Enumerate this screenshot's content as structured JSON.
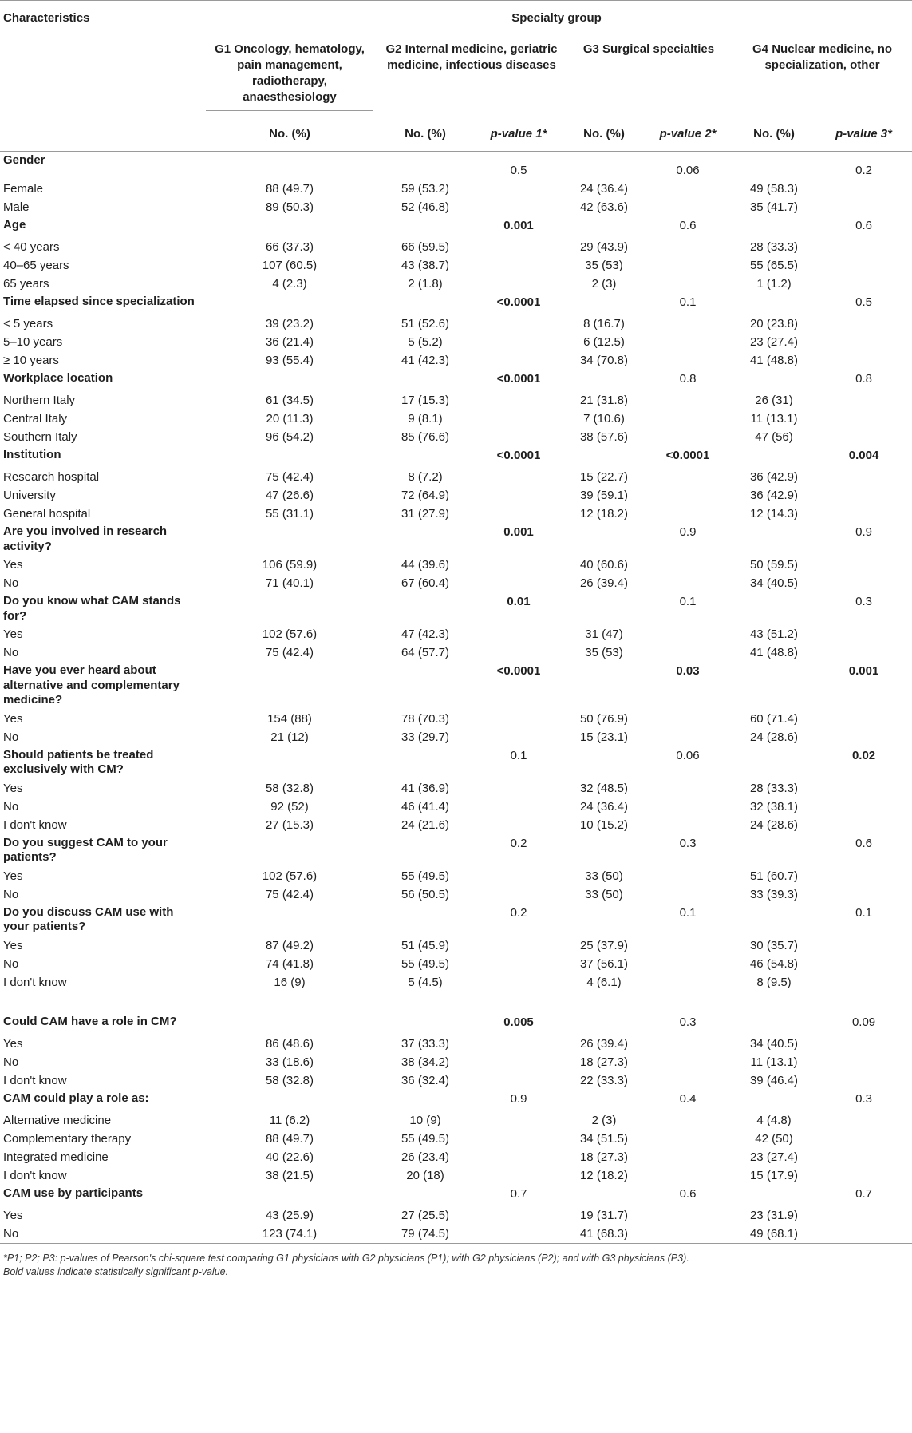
{
  "header": {
    "characteristics": "Characteristics",
    "specialty_group": "Specialty group",
    "groups": [
      "G1 Oncology, hematology, pain management, radiotherapy, anaesthesiology",
      "G2 Internal medicine, geriatric medicine, infectious diseases",
      "G3 Surgical specialties",
      "G4 Nuclear medicine, no specialization, other"
    ],
    "no_pct": "No. (%)",
    "pvalue1": "p-value 1*",
    "pvalue2": "p-value 2*",
    "pvalue3": "p-value 3*"
  },
  "sections": [
    {
      "title": "Gender",
      "p1": "0.5",
      "p2": "0.06",
      "p3": "0.2",
      "b1": false,
      "b2": false,
      "b3": false,
      "rows": [
        [
          "Female",
          "88 (49.7)",
          "59 (53.2)",
          "24 (36.4)",
          "49 (58.3)"
        ],
        [
          "Male",
          "89 (50.3)",
          "52 (46.8)",
          "42 (63.6)",
          "35 (41.7)"
        ]
      ]
    },
    {
      "title": "Age",
      "p1": "0.001",
      "p2": "0.6",
      "p3": "0.6",
      "b1": true,
      "b2": false,
      "b3": false,
      "rows": [
        [
          "< 40 years",
          "66 (37.3)",
          "66 (59.5)",
          "29 (43.9)",
          "28 (33.3)"
        ],
        [
          "40–65 years",
          "107 (60.5)",
          "43 (38.7)",
          "35 (53)",
          "55 (65.5)"
        ],
        [
          "65 years",
          "4 (2.3)",
          "2 (1.8)",
          "2 (3)",
          "1 (1.2)"
        ]
      ]
    },
    {
      "title": "Time elapsed since specialization",
      "p1": "<0.0001",
      "p2": "0.1",
      "p3": "0.5",
      "b1": true,
      "b2": false,
      "b3": false,
      "rows": [
        [
          "< 5 years",
          "39 (23.2)",
          "51 (52.6)",
          "8 (16.7)",
          "20 (23.8)"
        ],
        [
          "5–10 years",
          "36 (21.4)",
          "5 (5.2)",
          "6 (12.5)",
          "23 (27.4)"
        ],
        [
          "≥ 10 years",
          "93 (55.4)",
          "41 (42.3)",
          "34 (70.8)",
          "41 (48.8)"
        ]
      ]
    },
    {
      "title": "Workplace location",
      "p1": "<0.0001",
      "p2": "0.8",
      "p3": "0.8",
      "b1": true,
      "b2": false,
      "b3": false,
      "rows": [
        [
          "Northern Italy",
          "61 (34.5)",
          "17 (15.3)",
          "21 (31.8)",
          "26 (31)"
        ],
        [
          "Central Italy",
          "20 (11.3)",
          "9 (8.1)",
          "7 (10.6)",
          "11 (13.1)"
        ],
        [
          "Southern Italy",
          "96 (54.2)",
          "85 (76.6)",
          "38 (57.6)",
          "47 (56)"
        ]
      ]
    },
    {
      "title": "Institution",
      "p1": "<0.0001",
      "p2": "<0.0001",
      "p3": "0.004",
      "b1": true,
      "b2": true,
      "b3": true,
      "rows": [
        [
          "Research hospital",
          "75 (42.4)",
          "8 (7.2)",
          "15 (22.7)",
          "36 (42.9)"
        ],
        [
          "University",
          "47 (26.6)",
          "72 (64.9)",
          "39 (59.1)",
          "36 (42.9)"
        ],
        [
          "General hospital",
          "55 (31.1)",
          "31 (27.9)",
          "12 (18.2)",
          "12 (14.3)"
        ]
      ]
    },
    {
      "title": "Are you involved in research activity?",
      "p1": "0.001",
      "p2": "0.9",
      "p3": "0.9",
      "b1": true,
      "b2": false,
      "b3": false,
      "rows": [
        [
          "Yes",
          "106 (59.9)",
          "44 (39.6)",
          "40 (60.6)",
          "50 (59.5)"
        ],
        [
          "No",
          "71 (40.1)",
          "67 (60.4)",
          "26 (39.4)",
          "34 (40.5)"
        ]
      ]
    },
    {
      "title": "Do you know what CAM stands for?",
      "p1": "0.01",
      "p2": "0.1",
      "p3": "0.3",
      "b1": true,
      "b2": false,
      "b3": false,
      "rows": [
        [
          "Yes",
          "102 (57.6)",
          "47 (42.3)",
          "31 (47)",
          "43 (51.2)"
        ],
        [
          "No",
          "75 (42.4)",
          "64 (57.7)",
          "35 (53)",
          "41 (48.8)"
        ]
      ]
    },
    {
      "title": "Have you ever heard about alternative and complementary medicine?",
      "p1": "<0.0001",
      "p2": "0.03",
      "p3": "0.001",
      "b1": true,
      "b2": true,
      "b3": true,
      "rows": [
        [
          "Yes",
          "154 (88)",
          "78 (70.3)",
          "50 (76.9)",
          "60 (71.4)"
        ],
        [
          "No",
          "21 (12)",
          "33 (29.7)",
          "15 (23.1)",
          "24 (28.6)"
        ]
      ]
    },
    {
      "title": "Should patients be treated exclusively with CM?",
      "p1": "0.1",
      "p2": "0.06",
      "p3": "0.02",
      "b1": false,
      "b2": false,
      "b3": true,
      "rows": [
        [
          "Yes",
          "58 (32.8)",
          "41 (36.9)",
          "32 (48.5)",
          "28 (33.3)"
        ],
        [
          "No",
          "92 (52)",
          "46 (41.4)",
          "24 (36.4)",
          "32 (38.1)"
        ],
        [
          "I don't know",
          "27 (15.3)",
          "24 (21.6)",
          "10 (15.2)",
          "24 (28.6)"
        ]
      ]
    },
    {
      "title": "Do you suggest CAM to your patients?",
      "p1": "0.2",
      "p2": "0.3",
      "p3": "0.6",
      "b1": false,
      "b2": false,
      "b3": false,
      "rows": [
        [
          "Yes",
          "102 (57.6)",
          "55 (49.5)",
          "33 (50)",
          "51 (60.7)"
        ],
        [
          "No",
          "75 (42.4)",
          "56 (50.5)",
          "33 (50)",
          "33 (39.3)"
        ]
      ]
    },
    {
      "title": "Do you discuss CAM use with your patients?",
      "p1": "0.2",
      "p2": "0.1",
      "p3": "0.1",
      "b1": false,
      "b2": false,
      "b3": false,
      "rows": [
        [
          "Yes",
          "87 (49.2)",
          "51 (45.9)",
          "25 (37.9)",
          "30 (35.7)"
        ],
        [
          "No",
          "74 (41.8)",
          "55 (49.5)",
          "37 (56.1)",
          "46 (54.8)"
        ],
        [
          "I don't know",
          "16 (9)",
          "5 (4.5)",
          "4 (6.1)",
          "8 (9.5)"
        ]
      ]
    },
    {
      "title": "Could CAM have a role in CM?",
      "p1": "0.005",
      "p2": "0.3",
      "p3": "0.09",
      "b1": true,
      "b2": false,
      "b3": false,
      "gap_before": true,
      "rows": [
        [
          "Yes",
          "86 (48.6)",
          "37 (33.3)",
          "26 (39.4)",
          "34 (40.5)"
        ],
        [
          "No",
          "33 (18.6)",
          "38 (34.2)",
          "18 (27.3)",
          "11 (13.1)"
        ],
        [
          "I don't know",
          "58 (32.8)",
          "36 (32.4)",
          "22 (33.3)",
          "39 (46.4)"
        ]
      ]
    },
    {
      "title": "CAM could play a role as:",
      "p1": "0.9",
      "p2": "0.4",
      "p3": "0.3",
      "b1": false,
      "b2": false,
      "b3": false,
      "rows": [
        [
          "Alternative medicine",
          "11 (6.2)",
          "10 (9)",
          "2 (3)",
          "4 (4.8)"
        ],
        [
          "Complementary therapy",
          "88 (49.7)",
          "55 (49.5)",
          "34 (51.5)",
          "42 (50)"
        ],
        [
          "Integrated medicine",
          "40 (22.6)",
          "26 (23.4)",
          "18 (27.3)",
          "23 (27.4)"
        ],
        [
          "I don't know",
          "38 (21.5)",
          "20 (18)",
          "12 (18.2)",
          "15 (17.9)"
        ]
      ]
    },
    {
      "title": "CAM use by participants",
      "p1": "0.7",
      "p2": "0.6",
      "p3": "0.7",
      "b1": false,
      "b2": false,
      "b3": false,
      "rows": [
        [
          "Yes",
          "43 (25.9)",
          "27 (25.5)",
          "19 (31.7)",
          "23 (31.9)"
        ],
        [
          "No",
          "123 (74.1)",
          "79 (74.5)",
          "41 (68.3)",
          "49 (68.1)"
        ]
      ]
    }
  ],
  "footnote": {
    "line1": "*P1; P2; P3: p-values of Pearson's chi-square test comparing G1 physicians with G2 physicians (P1); with G2 physicians (P2); and with G3 physicians (P3).",
    "line2": "Bold values indicate statistically significant p-value."
  }
}
